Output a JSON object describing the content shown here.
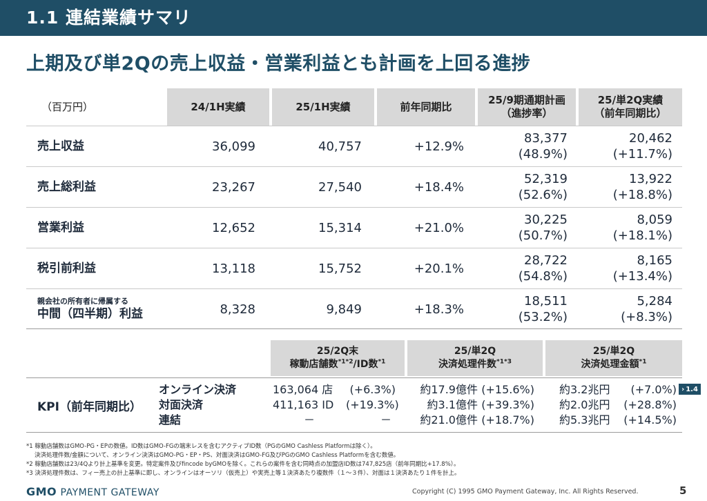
{
  "header": {
    "title": "1.1  連結業績サマリ"
  },
  "subtitle": "上期及び単2Qの売上収益・営業利益とも計画を上回る進捗",
  "table": {
    "unit": "（百万円）",
    "columns": [
      {
        "line1": "24/1H実績",
        "line2": ""
      },
      {
        "line1": "25/1H実績",
        "line2": ""
      },
      {
        "line1": "前年同期比",
        "line2": ""
      },
      {
        "line1": "25/9期通期計画",
        "line2": "（進捗率）"
      },
      {
        "line1": "25/単2Q実績",
        "line2": "（前年同期比）"
      }
    ],
    "rows": [
      {
        "label_small": "",
        "label": "売上収益",
        "v2024": "36,099",
        "v2025": "40,757",
        "yoy": "+12.9%",
        "plan": "83,377",
        "plan_rate": "(48.9%)",
        "q2": "20,462",
        "q2_yoy": "(+11.7%)"
      },
      {
        "label_small": "",
        "label": "売上総利益",
        "v2024": "23,267",
        "v2025": "27,540",
        "yoy": "+18.4%",
        "plan": "52,319",
        "plan_rate": "(52.6%)",
        "q2": "13,922",
        "q2_yoy": "(+18.8%)"
      },
      {
        "label_small": "",
        "label": "営業利益",
        "v2024": "12,652",
        "v2025": "15,314",
        "yoy": "+21.0%",
        "plan": "30,225",
        "plan_rate": "(50.7%)",
        "q2": "8,059",
        "q2_yoy": "(+18.1%)"
      },
      {
        "label_small": "",
        "label": "税引前利益",
        "v2024": "13,118",
        "v2025": "15,752",
        "yoy": "+20.1%",
        "plan": "28,722",
        "plan_rate": "(54.8%)",
        "q2": "8,165",
        "q2_yoy": "(+13.4%)"
      },
      {
        "label_small": "親会社の所有者に帰属する",
        "label": "中間（四半期）利益",
        "v2024": "8,328",
        "v2025": "9,849",
        "yoy": "+18.3%",
        "plan": "18,511",
        "plan_rate": "(53.2%)",
        "q2": "5,284",
        "q2_yoy": "(+8.3%)"
      }
    ]
  },
  "kpi": {
    "label": "KPI（前年同期比）",
    "headers": [
      {
        "line1": "25/2Q末",
        "line2a": "稼動店舗数",
        "sup1": "*1*2",
        "line2b": "/ID数",
        "sup2": "*1"
      },
      {
        "line1": "25/単2Q",
        "line2a": "決済処理件数",
        "sup1": "*1*3",
        "line2b": "",
        "sup2": ""
      },
      {
        "line1": "25/単2Q",
        "line2a": "決済処理金額",
        "sup1": "*1",
        "line2b": "",
        "sup2": ""
      }
    ],
    "types": [
      "オンライン決済",
      "対面決済",
      "連結"
    ],
    "stores": [
      {
        "value": "163,064 店",
        "change": "(+6.3%)"
      },
      {
        "value": "411,163 ID",
        "change": "(+19.3%)"
      },
      {
        "value": "－",
        "change": "－"
      }
    ],
    "counts": [
      {
        "value": "約17.9億件",
        "change": "(+15.6%)"
      },
      {
        "value": "約3.1億件",
        "change": "(+39.3%)"
      },
      {
        "value": "約21.0億件",
        "change": "(+18.7%)"
      }
    ],
    "amounts": [
      {
        "value": "約3.2兆円",
        "change": "(+7.0%)"
      },
      {
        "value": "約2.0兆円",
        "change": "(+28.8%)"
      },
      {
        "value": "約5.3兆円",
        "change": "(+14.5%)"
      }
    ],
    "tag": "1.4"
  },
  "footnotes": [
    "*1 稼動店舗数はGMO-PG・EPの数値。ID数はGMO-FGの端末レスを含むアクティブID数（PGのGMO Cashless Platformは除く）。",
    "決済処理件数/金額について、オンライン決済はGMO-PG・EP・PS、対面決済はGMO-FG及びPGのGMO Cashless Platformを含む数値。",
    "*2 稼動店舗数は23/4Qより計上基準を変更。特定案件及びfincode byGMOを除く。これらの案件を含む同時点の加盟店ID数は747,825店（前年同期比+17.8%）。",
    "*3 決済処理件数は、フィー売上の計上基準に即し、オンラインはオーソリ（仮売上）や実売上等１決済あたり複数件（１～３件）、対面は１決済あたり１件を計上。"
  ],
  "footer": {
    "logo_gmo": "GMO",
    "logo_rest": "PAYMENT GATEWAY",
    "copyright": "Copyright (C) 1995 GMO Payment Gateway, Inc. All Rights Reserved.",
    "page": "5"
  },
  "colors": {
    "brand": "#1f4e66",
    "header_cell": "#d8d8d8"
  }
}
